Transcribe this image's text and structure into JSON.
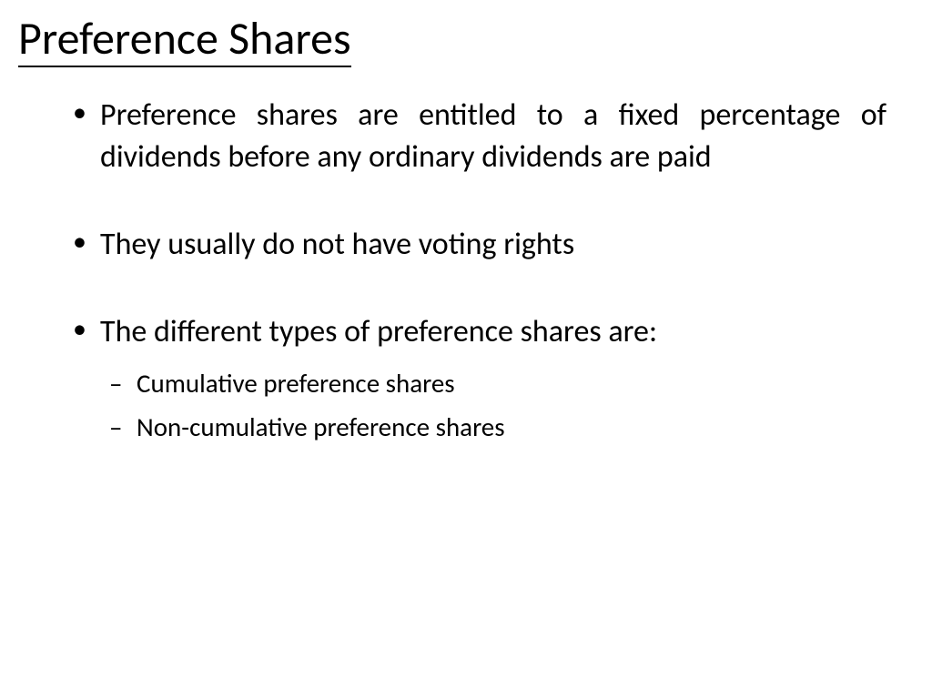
{
  "slide": {
    "title": "Preference Shares",
    "bullets": [
      {
        "text": "Preference shares are entitled to a fixed percentage of dividends before any ordinary dividends are paid",
        "justified": true
      },
      {
        "text": "They usually do not have voting rights",
        "justified": false
      },
      {
        "text": "The different types of preference shares are:",
        "justified": false,
        "subitems": [
          "Cumulative preference shares",
          "Non-cumulative preference shares"
        ]
      }
    ]
  },
  "styling": {
    "background_color": "#ffffff",
    "text_color": "#000000",
    "title_fontsize": 50,
    "bullet_fontsize": 34,
    "subbullet_fontsize": 29,
    "font_family": "Calibri",
    "underline_color": "#000000"
  }
}
